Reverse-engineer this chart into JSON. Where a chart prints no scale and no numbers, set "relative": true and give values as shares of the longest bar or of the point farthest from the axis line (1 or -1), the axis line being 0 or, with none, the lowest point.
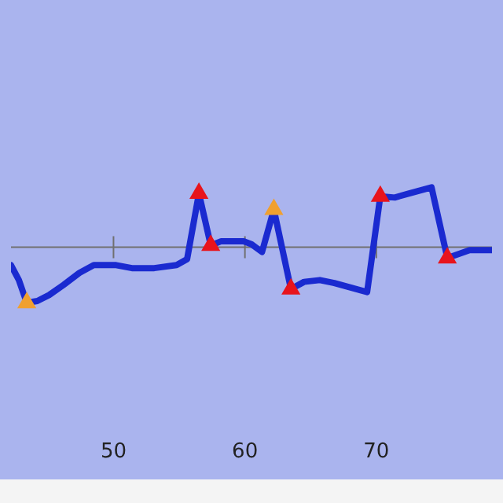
{
  "chart_data": {
    "type": "line",
    "relative": true,
    "xlim": [
      42.2,
      78.8
    ],
    "xticks": [
      50,
      60,
      70
    ],
    "grid": false,
    "legend": false,
    "tick_labels": "x",
    "line_style": "solid",
    "series": [
      {
        "type": "line",
        "color": "#1a2ad0",
        "marker": "none",
        "x": [
          42.2,
          42.8,
          43.4,
          44.2,
          45.1,
          46.2,
          47.4,
          48.5,
          50.2,
          51.4,
          53.1,
          54.8,
          55.6,
          56.5,
          57.4,
          58.2,
          59.9,
          60.5,
          61.3,
          62.2,
          63.5,
          64.5,
          65.7,
          66.8,
          69.3,
          70.3,
          71.4,
          72.5,
          74.2,
          75.4,
          77.1,
          78.8
        ],
        "values": [
          -0.3,
          -0.55,
          -0.93,
          -0.9,
          -0.8,
          -0.63,
          -0.43,
          -0.3,
          -0.3,
          -0.35,
          -0.35,
          -0.3,
          -0.2,
          0.9,
          0.03,
          0.1,
          0.1,
          0.05,
          -0.08,
          0.63,
          -0.7,
          -0.58,
          -0.55,
          -0.6,
          -0.75,
          0.85,
          0.83,
          0.9,
          1,
          -0.18,
          -0.05,
          -0.05
        ]
      },
      {
        "type": "scatter",
        "color": "#e8141c",
        "marker": "triangle",
        "x": [
          56.5,
          70.3
        ],
        "values": [
          0.9,
          0.85
        ]
      },
      {
        "type": "scatter",
        "color": "#e8141c",
        "marker": "triangle",
        "x": [
          57.4,
          63.5,
          75.4
        ],
        "values": [
          0.03,
          -0.7,
          -0.18
        ]
      },
      {
        "type": "scatter",
        "color": "#f0a030",
        "marker": "triangle",
        "x": [
          43.4,
          62.2
        ],
        "values": [
          -0.93,
          0.63
        ]
      }
    ]
  }
}
